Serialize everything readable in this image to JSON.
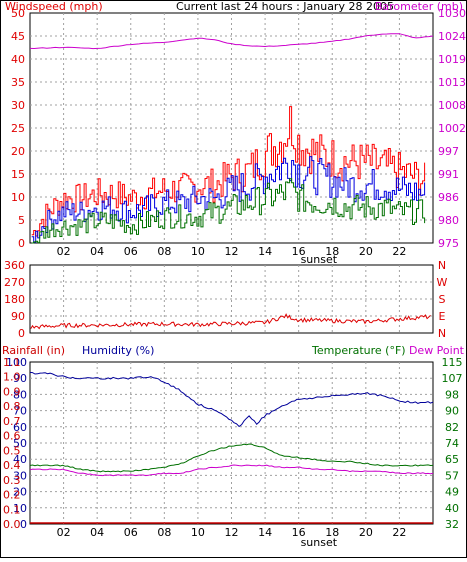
{
  "colors": {
    "windspeed": "#e00000",
    "gust": "#ff0000",
    "avg": "#0000e0",
    "low": "#007000",
    "barometer": "#cc00cc",
    "direction": "#dd0000",
    "humidity": "#00009a",
    "temperature": "#007000",
    "dewpoint": "#cc00cc",
    "rainfall": "#cc0000",
    "grid": "#a0a0a0",
    "frame": "#000000"
  },
  "header": {
    "title": "Current last 24 hours : January 28 2005"
  },
  "chart_data": [
    {
      "type": "line",
      "name": "wind-barometer",
      "left_label": "Windspeed (mph)",
      "right_label": "Barometer (mb)",
      "x_ticks": [
        "02",
        "04",
        "06",
        "08",
        "10",
        "12",
        "14",
        "16",
        "18",
        "20",
        "22"
      ],
      "x_note": "sunset",
      "y_left_ticks": [
        "0",
        "5",
        "10",
        "15",
        "20",
        "25",
        "30",
        "35",
        "40",
        "45",
        "50"
      ],
      "y_right_ticks": [
        "975",
        "980",
        "986",
        "991",
        "997",
        "1002",
        "1008",
        "1013",
        "1019",
        "1024",
        "1030"
      ],
      "ylim_left": [
        0,
        50
      ],
      "ylim_right": [
        975,
        1030
      ],
      "grid": true,
      "series": [
        {
          "role": "windspeed-gust",
          "color_key": "gust",
          "x": [
            0.1,
            1,
            2,
            3,
            4,
            5,
            6,
            7,
            8,
            9,
            10,
            11,
            12,
            13,
            14,
            15,
            15.5,
            16,
            17,
            18,
            19,
            20,
            21,
            22,
            23.5
          ],
          "y": [
            2,
            7,
            10,
            10,
            11,
            11,
            10,
            11,
            12,
            12,
            13,
            13,
            15,
            16,
            20,
            23,
            27,
            22,
            20,
            19,
            18,
            18,
            17,
            16,
            14
          ]
        },
        {
          "role": "windspeed-average",
          "color_key": "avg",
          "x": [
            0.1,
            1,
            2,
            3,
            4,
            5,
            6,
            7,
            8,
            9,
            10,
            11,
            12,
            13,
            14,
            15,
            15.5,
            16,
            17,
            18,
            19,
            20,
            21,
            22,
            23.5
          ],
          "y": [
            1,
            5,
            7,
            7,
            8,
            8,
            7,
            8,
            9,
            9,
            10,
            10,
            12,
            13,
            15,
            17,
            19,
            16,
            15,
            14,
            13,
            13,
            13,
            12,
            11
          ]
        },
        {
          "role": "windspeed-low",
          "color_key": "low",
          "x": [
            0.1,
            1,
            2,
            3,
            4,
            5,
            6,
            7,
            8,
            9,
            10,
            11,
            12,
            13,
            14,
            15,
            15.5,
            16,
            17,
            18,
            19,
            20,
            21,
            22,
            23.5
          ],
          "y": [
            0,
            3,
            4,
            4,
            5,
            5,
            4,
            5,
            6,
            6,
            6,
            7,
            8,
            9,
            10,
            11,
            12,
            10,
            9,
            9,
            8,
            8,
            8,
            7,
            7
          ]
        },
        {
          "role": "barometer",
          "color_key": "barometer",
          "x": [
            0,
            2,
            4,
            6,
            8,
            10,
            11,
            12,
            13,
            14,
            15,
            16,
            17,
            18,
            19,
            20,
            21,
            22,
            23,
            24
          ],
          "y": [
            1021.5,
            1021.8,
            1021.5,
            1022.5,
            1023,
            1024,
            1023.6,
            1022.6,
            1022.2,
            1022,
            1022.2,
            1022.5,
            1022.8,
            1023.2,
            1023.8,
            1024.5,
            1025,
            1025,
            1024,
            1024.5
          ]
        }
      ]
    },
    {
      "type": "line",
      "name": "wind-direction",
      "y_left_ticks": [
        "0",
        "90",
        "180",
        "270",
        "360"
      ],
      "y_right_ticks": [
        "N",
        "E",
        "S",
        "W",
        "N"
      ],
      "ylim": [
        0,
        360
      ],
      "grid": true,
      "series": [
        {
          "role": "direction",
          "color_key": "direction",
          "x": [
            0,
            2,
            4,
            6,
            8,
            10,
            12,
            14,
            15.2,
            16,
            18,
            20,
            22,
            23.5
          ],
          "y": [
            30,
            40,
            42,
            45,
            48,
            45,
            50,
            55,
            90,
            70,
            65,
            60,
            75,
            85
          ]
        }
      ]
    },
    {
      "type": "line",
      "name": "humidity-temperature",
      "left_labels": [
        "Rainfall (in)",
        "Humidity (%)"
      ],
      "right_labels": [
        "Temperature (°F)",
        "Dew Point"
      ],
      "x_ticks": [
        "02",
        "04",
        "06",
        "08",
        "10",
        "12",
        "14",
        "16",
        "18",
        "20",
        "22"
      ],
      "x_note": "sunset",
      "y_humidity_ticks": [
        "0",
        "10",
        "20",
        "30",
        "40",
        "50",
        "60",
        "70",
        "80",
        "90",
        "100"
      ],
      "y_rain_ticks": [
        "0.0",
        "0.1",
        "0.2",
        "0.3",
        "0.4",
        "0.5",
        "0.6",
        "0.7",
        "0.8",
        "0.9",
        "1.0",
        "1.1"
      ],
      "y_temp_ticks": [
        "32",
        "40",
        "49",
        "57",
        "65",
        "74",
        "82",
        "90",
        "98",
        "107",
        "115"
      ],
      "ylim_humidity": [
        0,
        100
      ],
      "ylim_temperature": [
        32,
        115
      ],
      "grid": true,
      "series": [
        {
          "role": "humidity",
          "color_key": "humidity",
          "x": [
            0,
            1,
            2,
            3,
            4,
            5,
            6,
            7,
            8,
            9,
            10,
            11,
            12,
            12.5,
            13,
            13.5,
            14,
            15,
            16,
            17,
            18,
            19,
            20,
            21,
            22,
            23,
            24
          ],
          "y": [
            93,
            93,
            91,
            90,
            90,
            90,
            90,
            91,
            88,
            82,
            74,
            70,
            64,
            60,
            67,
            62,
            67,
            73,
            77,
            78,
            79,
            80,
            81,
            79,
            76,
            75,
            75
          ]
        },
        {
          "role": "temperature",
          "color_key": "temperature",
          "x": [
            0,
            2,
            3,
            4,
            5,
            6,
            7,
            8,
            9,
            10,
            11,
            12,
            13,
            14,
            15,
            16,
            17,
            18,
            19,
            20,
            21,
            22,
            23,
            24
          ],
          "y": [
            62,
            62,
            60,
            59,
            59,
            59,
            60,
            61,
            63,
            67,
            70,
            72,
            73,
            71,
            67,
            66,
            65,
            64,
            64,
            63,
            62,
            62,
            62,
            62
          ]
        },
        {
          "role": "dewpoint",
          "color_key": "dewpoint",
          "x": [
            0,
            2,
            3,
            4,
            5,
            6,
            7,
            8,
            9,
            10,
            11,
            12,
            13,
            14,
            15,
            16,
            17,
            18,
            19,
            20,
            21,
            22,
            23,
            24
          ],
          "y": [
            60,
            60,
            58,
            57,
            57,
            57,
            57,
            58,
            58,
            60,
            61,
            62,
            62,
            62,
            61,
            61,
            60,
            60,
            59,
            59,
            59,
            58,
            58,
            58
          ]
        },
        {
          "role": "rainfall",
          "color_key": "rainfall",
          "x": [
            0,
            24
          ],
          "y": [
            0,
            0
          ]
        }
      ]
    }
  ]
}
